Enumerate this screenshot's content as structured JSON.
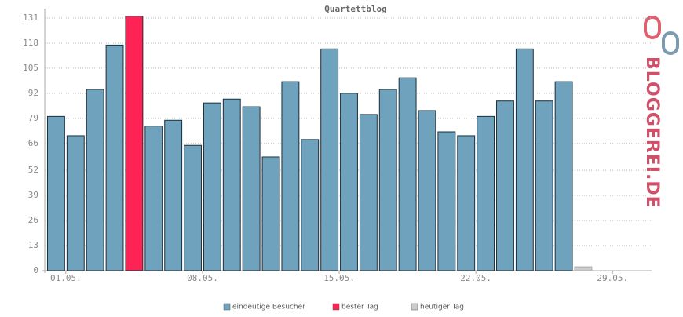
{
  "chart_data": {
    "type": "bar",
    "title": "Quartettblog",
    "logo": "BLOGGEREI.DE",
    "categories": [
      "01.05.",
      null,
      null,
      null,
      null,
      null,
      null,
      "08.05.",
      null,
      null,
      null,
      null,
      null,
      null,
      "15.05.",
      null,
      null,
      null,
      null,
      null,
      null,
      "22.05.",
      null,
      null,
      null,
      null,
      null,
      null,
      "29.05.",
      null,
      null
    ],
    "series": [
      {
        "name": "eindeutige Besucher",
        "color": "#6fa3bd",
        "values": [
          80,
          70,
          94,
          117,
          null,
          75,
          78,
          65,
          87,
          89,
          85,
          59,
          98,
          68,
          115,
          92,
          81,
          94,
          100,
          83,
          72,
          70,
          80,
          88,
          115,
          88,
          98,
          null,
          null,
          null,
          null
        ]
      },
      {
        "name": "bester Tag",
        "color": "#ff2255",
        "values": [
          null,
          null,
          null,
          null,
          132,
          null,
          null,
          null,
          null,
          null,
          null,
          null,
          null,
          null,
          null,
          null,
          null,
          null,
          null,
          null,
          null,
          null,
          null,
          null,
          null,
          null,
          null,
          null,
          null,
          null,
          null
        ]
      },
      {
        "name": "heutiger Tag",
        "color": "#cccccc",
        "values": [
          null,
          null,
          null,
          null,
          null,
          null,
          null,
          null,
          null,
          null,
          null,
          null,
          null,
          null,
          null,
          null,
          null,
          null,
          null,
          null,
          null,
          null,
          null,
          null,
          null,
          null,
          null,
          2,
          null,
          null,
          null
        ]
      }
    ],
    "ylim": [
      0,
      131
    ],
    "yticks": [
      0,
      13,
      26,
      39,
      52,
      66,
      79,
      92,
      105,
      118,
      131
    ],
    "grid": true
  }
}
